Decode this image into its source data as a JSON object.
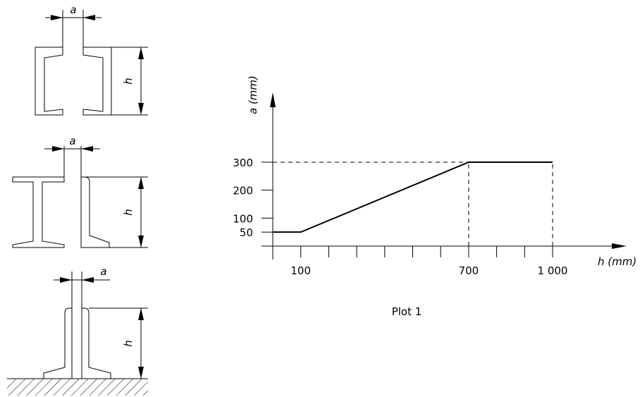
{
  "figures": {
    "channel": {
      "dim_a": "a",
      "dim_h": "h"
    },
    "ibeam": {
      "dim_a": "a",
      "dim_h": "h"
    },
    "tee": {
      "dim_a": "a",
      "dim_h": "h"
    }
  },
  "plot": {
    "ylabel": "a (mm)",
    "xlabel": "h (mm)",
    "caption": "Plot 1"
  },
  "chart_data": {
    "type": "line",
    "xlabel": "h (mm)",
    "ylabel": "a (mm)",
    "x_tick_labels": [
      "100",
      "700",
      "1 000"
    ],
    "y_tick_labels": [
      "50",
      "100",
      "200",
      "300"
    ],
    "series": [
      {
        "x": [
          0,
          100,
          700,
          1000
        ],
        "y": [
          50,
          50,
          300,
          300
        ]
      }
    ],
    "reference_lines": [
      {
        "kind": "horizontal",
        "y": 300,
        "x_from": 0,
        "x_to": 700,
        "style": "dashed"
      },
      {
        "kind": "vertical",
        "x": 700,
        "y_from": 0,
        "y_to": 300,
        "style": "dashed"
      },
      {
        "kind": "vertical",
        "x": 1000,
        "y_from": 0,
        "y_to": 300,
        "style": "dashed"
      }
    ],
    "xlim": [
      0,
      1000
    ],
    "ylim": [
      0,
      300
    ],
    "grid": false
  }
}
